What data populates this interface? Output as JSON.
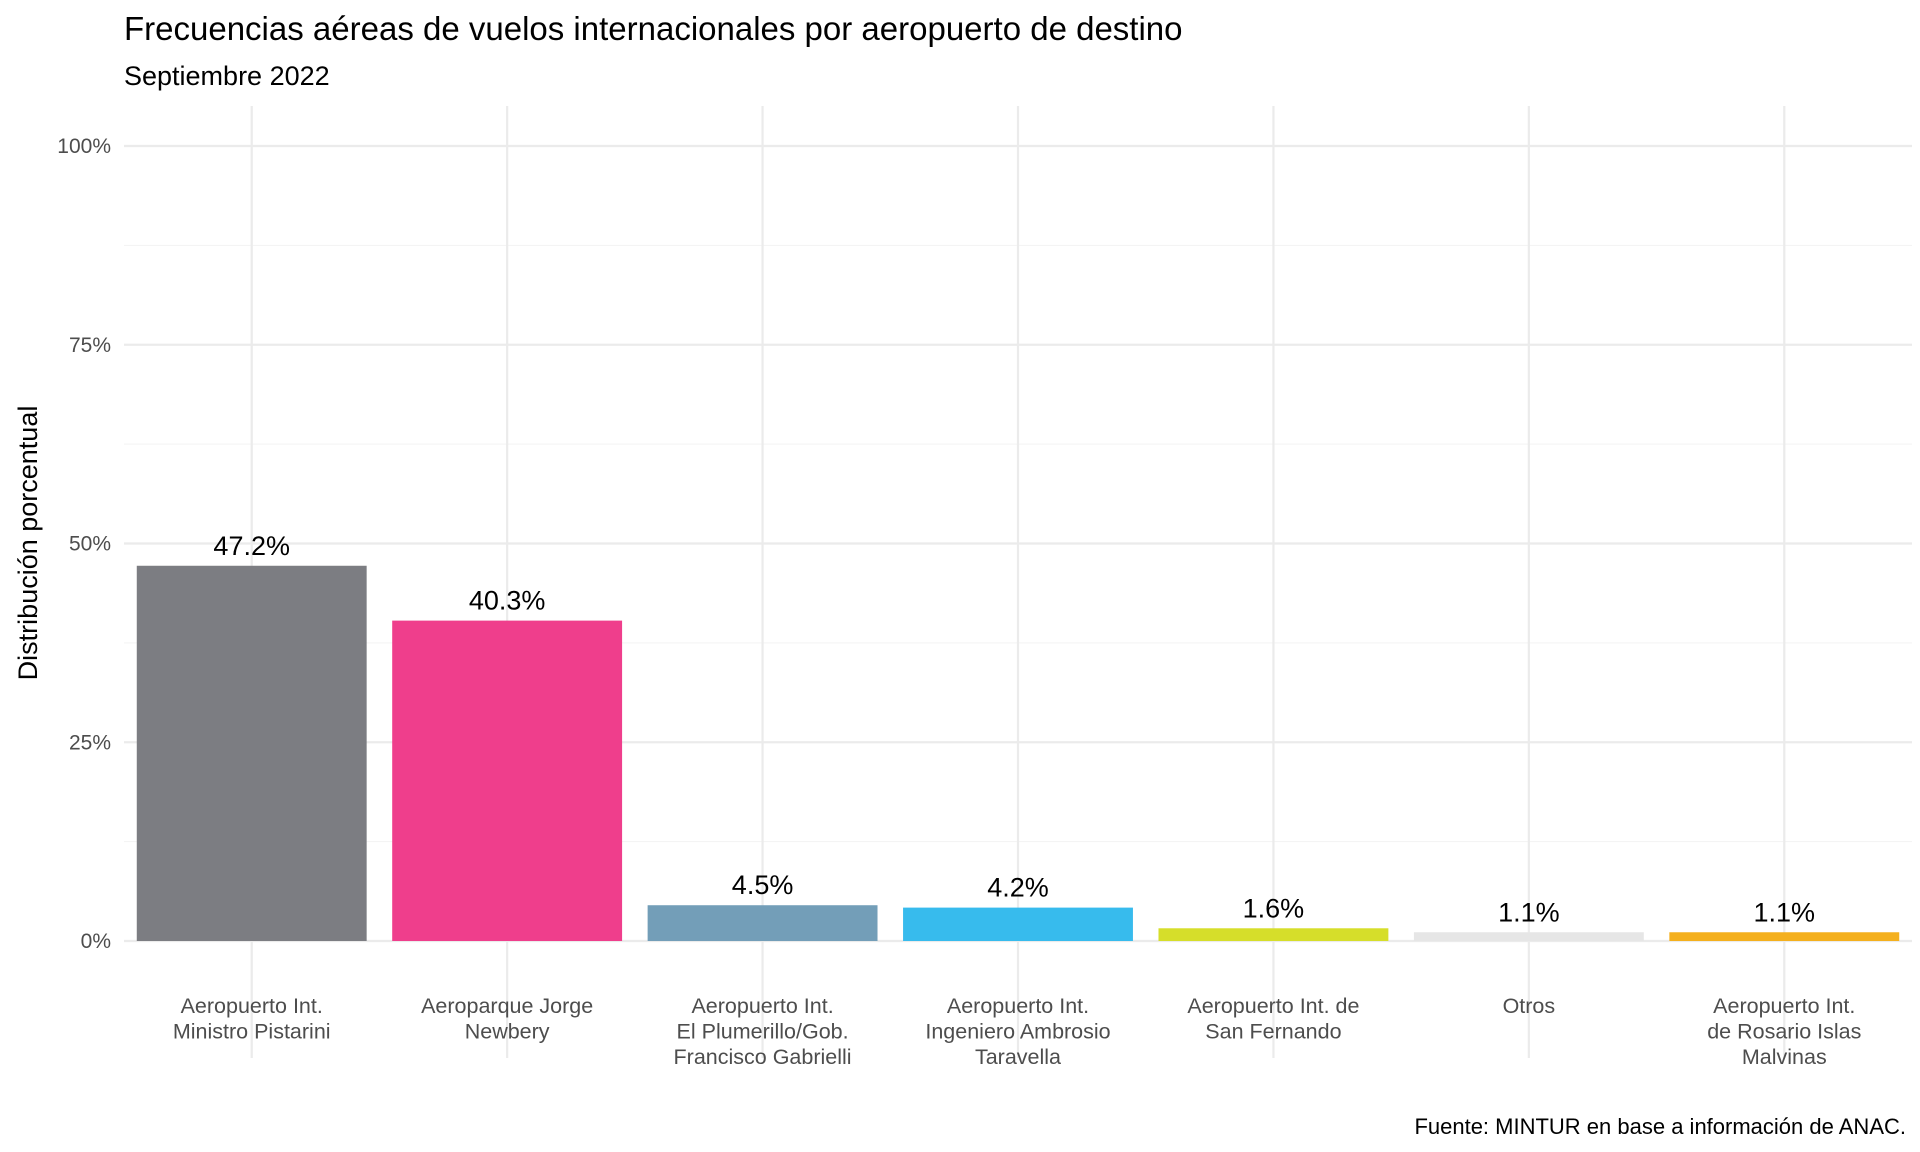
{
  "chart_data": {
    "type": "bar",
    "title": "Frecuencias aéreas de vuelos internacionales por aeropuerto de destino",
    "subtitle": "Septiembre 2022",
    "ylabel": "Distribución porcentual",
    "xlabel": "",
    "caption": "Fuente: MINTUR en base a información de ANAC.",
    "ylim": [
      0,
      100
    ],
    "yticks": [
      0,
      25,
      50,
      75,
      100
    ],
    "ytick_labels": [
      "0%",
      "25%",
      "50%",
      "75%",
      "100%"
    ],
    "grid": true,
    "legend": "none",
    "categories": [
      [
        "Aeropuerto Int.",
        "Ministro Pistarini"
      ],
      [
        "Aeroparque Jorge",
        "Newbery"
      ],
      [
        "Aeropuerto Int.",
        "El Plumerillo/Gob.",
        "Francisco Gabrielli"
      ],
      [
        "Aeropuerto Int.",
        "Ingeniero Ambrosio",
        "Taravella"
      ],
      [
        "Aeropuerto Int. de",
        "San Fernando"
      ],
      [
        "Otros"
      ],
      [
        "Aeropuerto Int.",
        "de Rosario Islas",
        "Malvinas"
      ]
    ],
    "values": [
      47.2,
      40.3,
      4.5,
      4.2,
      1.6,
      1.1,
      1.1
    ],
    "value_labels": [
      "47.2%",
      "40.3%",
      "4.5%",
      "4.2%",
      "1.6%",
      "1.1%",
      "1.1%"
    ],
    "colors": [
      "#7c7d82",
      "#ef3e8c",
      "#739eb8",
      "#37bbed",
      "#d6de2a",
      "#e6e6e6",
      "#f4b01e"
    ]
  }
}
